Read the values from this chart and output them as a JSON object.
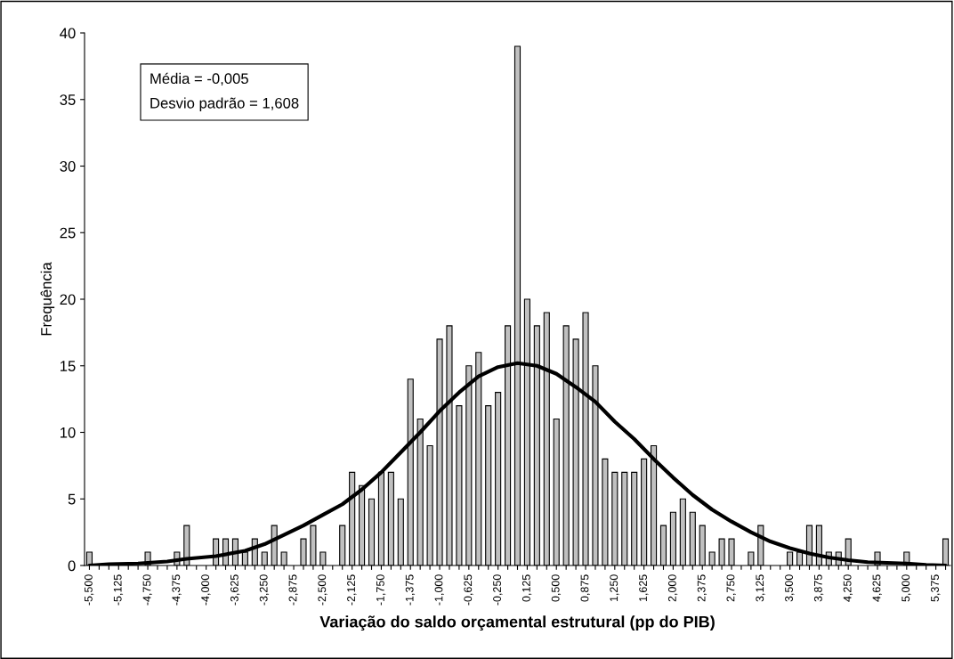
{
  "chart_data": {
    "type": "bar",
    "xlabel": "Variação do saldo orçamental estrutural (pp do PIB)",
    "ylabel": "Frequência",
    "categories": [
      "-5,500",
      null,
      null,
      "-5,125",
      null,
      null,
      "-4,750",
      null,
      null,
      "-4,375",
      null,
      null,
      "-4,000",
      null,
      null,
      "-3,625",
      null,
      null,
      "-3,250",
      null,
      null,
      "-2,875",
      null,
      null,
      "-2,500",
      null,
      null,
      "-2,125",
      null,
      null,
      "-1,750",
      null,
      null,
      "-1,375",
      null,
      null,
      "-1,000",
      null,
      null,
      "-0,625",
      null,
      null,
      "-0,250",
      null,
      null,
      "0,125",
      null,
      null,
      "0,500",
      null,
      null,
      "0,875",
      null,
      null,
      "1,250",
      null,
      null,
      "1,625",
      null,
      null,
      "2,000",
      null,
      null,
      "2,375",
      null,
      null,
      "2,750",
      null,
      null,
      "3,125",
      null,
      null,
      "3,500",
      null,
      null,
      "3,875",
      null,
      null,
      "4,250",
      null,
      null,
      "4,625",
      null,
      null,
      "5,000",
      null,
      null,
      "5,375",
      null
    ],
    "series": [
      {
        "color": "#c0c0c0",
        "values": [
          1,
          0,
          0,
          0,
          0,
          0,
          1,
          0,
          0,
          1,
          3,
          0,
          0,
          2,
          2,
          2,
          1,
          2,
          1,
          3,
          1,
          0,
          2,
          3,
          1,
          0,
          3,
          7,
          6,
          5,
          7,
          7,
          5,
          14,
          11,
          9,
          17,
          18,
          12,
          15,
          16,
          12,
          13,
          18,
          39,
          20,
          18,
          19,
          11,
          18,
          17,
          19,
          15,
          8,
          7,
          7,
          7,
          8,
          9,
          3,
          4,
          5,
          4,
          3,
          1,
          2,
          2,
          0,
          1,
          3,
          0,
          0,
          1,
          1,
          3,
          3,
          1,
          1,
          2,
          0,
          0,
          1,
          0,
          0,
          1,
          0,
          0,
          0,
          2
        ]
      },
      {
        "type": "line",
        "color": "#000000",
        "values": [
          0,
          null,
          0.1,
          null,
          null,
          0.15,
          null,
          null,
          0.3,
          null,
          0.5,
          null,
          null,
          0.7,
          null,
          null,
          1.1,
          null,
          1.6,
          null,
          2.3,
          null,
          3.0,
          null,
          3.8,
          null,
          4.6,
          null,
          5.7,
          null,
          7.0,
          null,
          8.5,
          null,
          10.0,
          null,
          11.6,
          null,
          13.0,
          null,
          14.2,
          null,
          14.9,
          null,
          15.2,
          null,
          15.0,
          null,
          14.4,
          null,
          13.4,
          null,
          12.3,
          null,
          10.8,
          null,
          9.5,
          null,
          8.0,
          null,
          6.6,
          null,
          5.3,
          null,
          4.2,
          null,
          3.3,
          null,
          2.5,
          null,
          1.8,
          null,
          1.3,
          null,
          0.9,
          null,
          0.6,
          null,
          0.4,
          null,
          0.25,
          null,
          0.2,
          null,
          0.15,
          null,
          0.05,
          null,
          0
        ]
      }
    ],
    "ylim": [
      0,
      40
    ],
    "yticks": [
      0,
      5,
      10,
      15,
      20,
      25,
      30,
      35,
      40
    ],
    "annotations": [
      "Média = -0,005",
      "Desvio padrão = 1,608"
    ],
    "grid": false,
    "legend": false
  }
}
